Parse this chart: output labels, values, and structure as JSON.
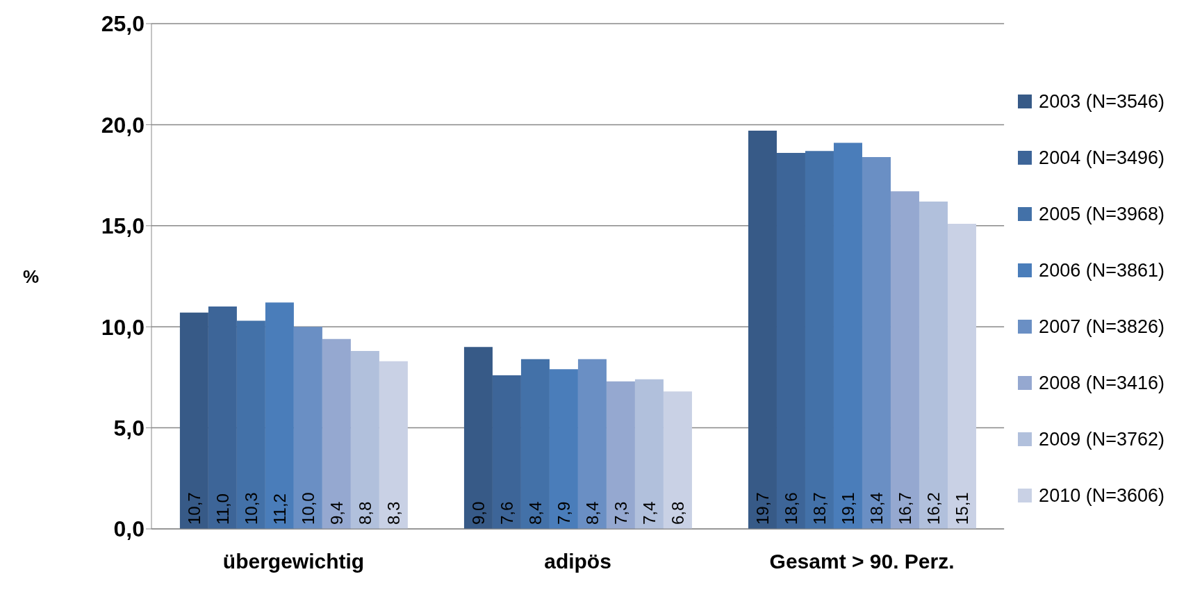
{
  "chart_data": {
    "type": "bar",
    "ylabel": "%",
    "categories": [
      "übergewichtig",
      "adipös",
      "Gesamt > 90. Perz."
    ],
    "series": [
      {
        "name": "2003 (N=3546)",
        "color": "#375a87",
        "values": [
          10.7,
          9.0,
          19.7
        ],
        "value_labels": [
          "10,7",
          "9,0",
          "19,7"
        ]
      },
      {
        "name": "2004 (N=3496)",
        "color": "#3d6598",
        "values": [
          11.0,
          7.6,
          18.6
        ],
        "value_labels": [
          "11,0",
          "7,6",
          "18,6"
        ]
      },
      {
        "name": "2005 (N=3968)",
        "color": "#4371a8",
        "values": [
          10.3,
          8.4,
          18.7
        ],
        "value_labels": [
          "10,3",
          "8,4",
          "18,7"
        ]
      },
      {
        "name": "2006 (N=3861)",
        "color": "#4a7dba",
        "values": [
          11.2,
          7.9,
          19.1
        ],
        "value_labels": [
          "11,2",
          "7,9",
          "19,1"
        ]
      },
      {
        "name": "2007 (N=3826)",
        "color": "#6a8fc4",
        "values": [
          10.0,
          8.4,
          18.4
        ],
        "value_labels": [
          "10,0",
          "8,4",
          "18,4"
        ]
      },
      {
        "name": "2008 (N=3416)",
        "color": "#95a8d0",
        "values": [
          9.4,
          7.3,
          16.7
        ],
        "value_labels": [
          "9,4",
          "7,3",
          "16,7"
        ]
      },
      {
        "name": "2009 (N=3762)",
        "color": "#b1c0dc",
        "values": [
          8.8,
          7.4,
          16.2
        ],
        "value_labels": [
          "8,8",
          "7,4",
          "16,2"
        ]
      },
      {
        "name": "2010 (N=3606)",
        "color": "#c9d1e5",
        "values": [
          8.3,
          6.8,
          15.1
        ],
        "value_labels": [
          "8,3",
          "6,8",
          "15,1"
        ]
      }
    ],
    "ylim": [
      0,
      25
    ],
    "yticks": [
      {
        "value": 0,
        "label": "0,0"
      },
      {
        "value": 5,
        "label": "5,0"
      },
      {
        "value": 10,
        "label": "10,0"
      },
      {
        "value": 15,
        "label": "15,0"
      },
      {
        "value": 20,
        "label": "20,0"
      },
      {
        "value": 25,
        "label": "25,0"
      }
    ],
    "grid": "y",
    "legend": "right"
  }
}
